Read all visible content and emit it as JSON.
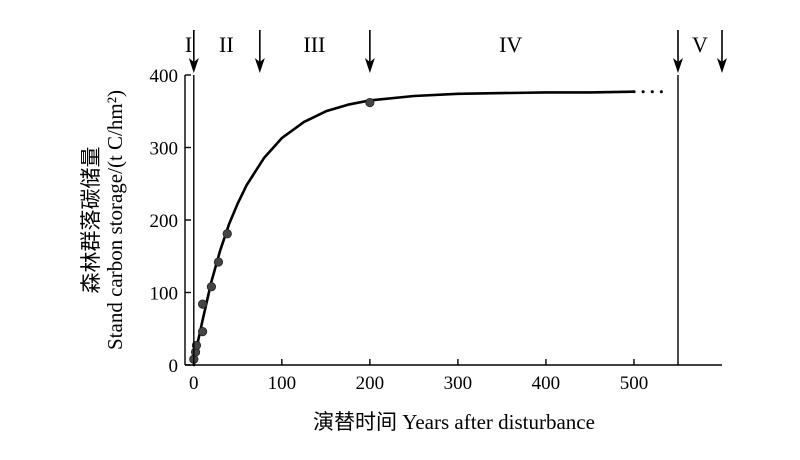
{
  "chart_data": {
    "type": "line",
    "xlabel": "演替时间 Years after disturbance",
    "ylabel_cn": "森林群落碳储量",
    "ylabel_en": "Stand carbon storage/(t C/hm²)",
    "xlim": [
      -10,
      600
    ],
    "ylim": [
      0,
      400
    ],
    "x_ticks": [
      0,
      100,
      200,
      300,
      400,
      500
    ],
    "y_ticks": [
      0,
      100,
      200,
      300,
      400
    ],
    "grid": false,
    "legend": "none",
    "series": [
      {
        "style": "solid",
        "x": [
          0,
          2,
          5,
          10,
          20,
          30,
          40,
          50,
          60,
          80,
          100,
          125,
          150,
          175,
          200,
          250,
          300,
          350,
          400,
          450,
          500
        ],
        "y": [
          0,
          14,
          34,
          62,
          115,
          158,
          194,
          223,
          248,
          286,
          313,
          335,
          350,
          359,
          365,
          371,
          374,
          375,
          376,
          376,
          377
        ]
      },
      {
        "style": "dotted",
        "x": [
          500,
          540
        ],
        "y": [
          377,
          377
        ]
      }
    ],
    "observed_points": {
      "x": [
        0,
        2,
        3,
        10,
        10,
        20,
        28,
        38,
        200
      ],
      "y": [
        8,
        18,
        27,
        46,
        84,
        108,
        142,
        181,
        362
      ]
    },
    "stage_arrows_x": [
      0,
      75,
      200,
      550,
      600
    ],
    "stage_lines_x": [
      0,
      550
    ],
    "stages": [
      {
        "label": "I",
        "x": -6
      },
      {
        "label": "II",
        "x": 37
      },
      {
        "label": "III",
        "x": 137
      },
      {
        "label": "IV",
        "x": 360
      },
      {
        "label": "V",
        "x": 575
      }
    ]
  }
}
